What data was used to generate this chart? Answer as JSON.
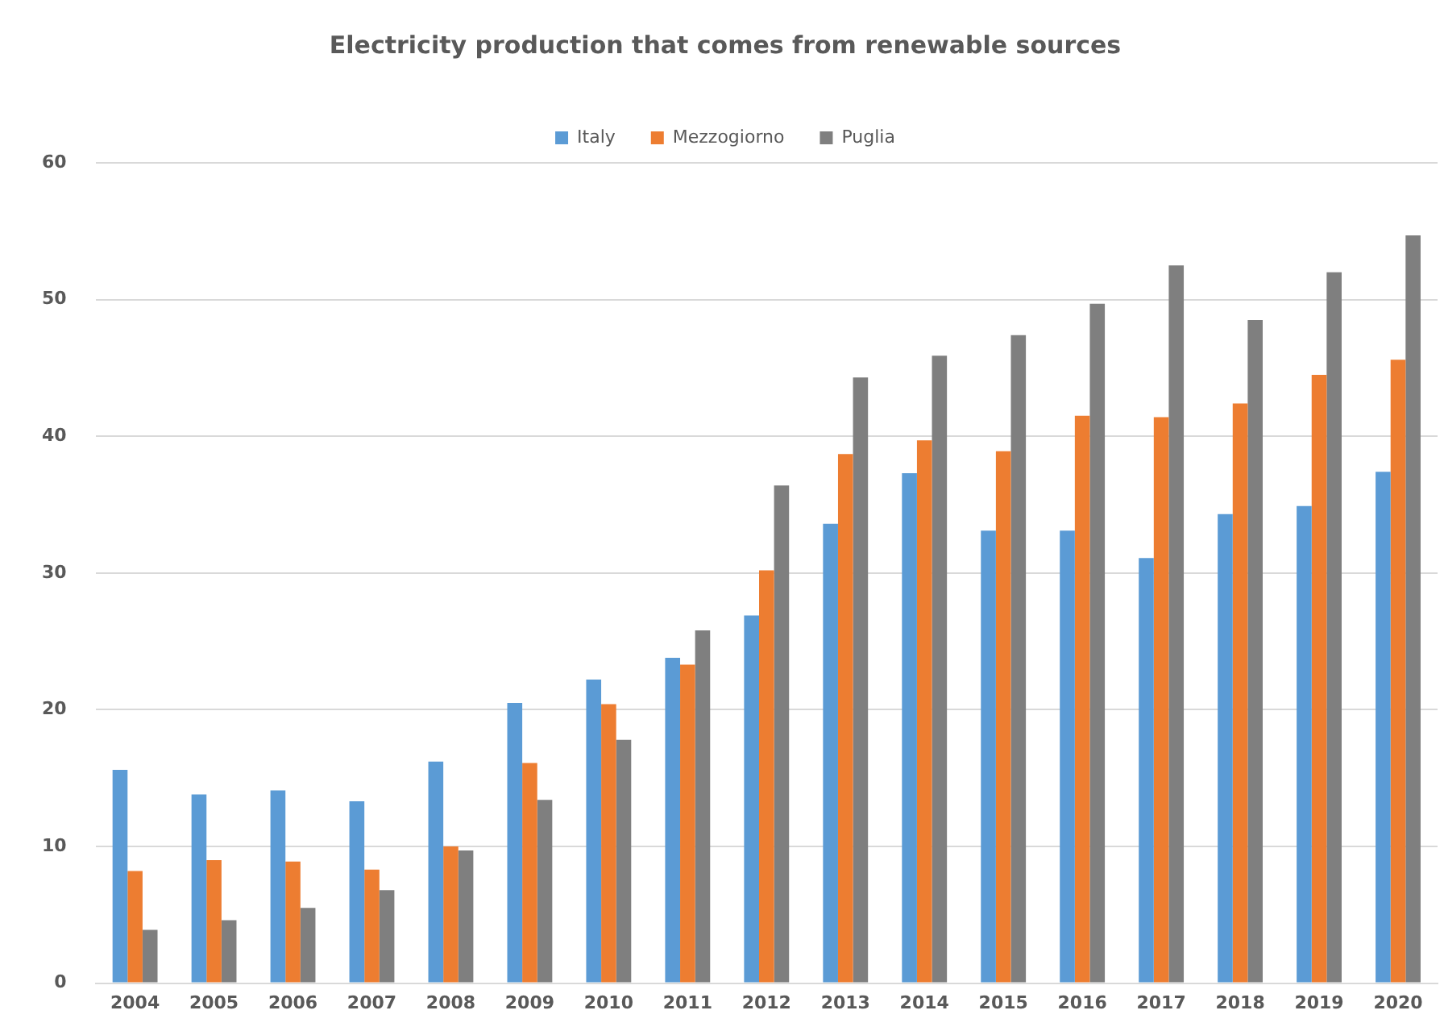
{
  "chart_data": {
    "type": "bar",
    "title": "Electricity production that comes from renewable sources",
    "categories": [
      "2004",
      "2005",
      "2006",
      "2007",
      "2008",
      "2009",
      "2010",
      "2011",
      "2012",
      "2013",
      "2014",
      "2015",
      "2016",
      "2017",
      "2018",
      "2019",
      "2020"
    ],
    "series": [
      {
        "name": "Italy",
        "color": "#5b9bd5",
        "values": [
          15.6,
          13.8,
          14.1,
          13.3,
          16.2,
          20.5,
          22.2,
          23.8,
          26.9,
          33.6,
          37.3,
          33.1,
          33.1,
          31.1,
          34.3,
          34.9,
          37.4
        ]
      },
      {
        "name": "Mezzogiorno",
        "color": "#ed7d31",
        "values": [
          8.2,
          9.0,
          8.9,
          8.3,
          10.0,
          16.1,
          20.4,
          23.3,
          30.2,
          38.7,
          39.7,
          38.9,
          41.5,
          41.4,
          42.4,
          44.5,
          45.6
        ]
      },
      {
        "name": "Puglia",
        "color": "#7f7f7f",
        "values": [
          3.9,
          4.6,
          5.5,
          6.8,
          9.7,
          13.4,
          17.8,
          25.8,
          36.4,
          44.3,
          45.9,
          47.4,
          49.7,
          52.5,
          48.5,
          52.0,
          54.7
        ]
      }
    ],
    "ylim": [
      0,
      60
    ],
    "yticks": [
      0,
      10,
      20,
      30,
      40,
      50,
      60
    ],
    "grid": "y",
    "legend": "top"
  }
}
